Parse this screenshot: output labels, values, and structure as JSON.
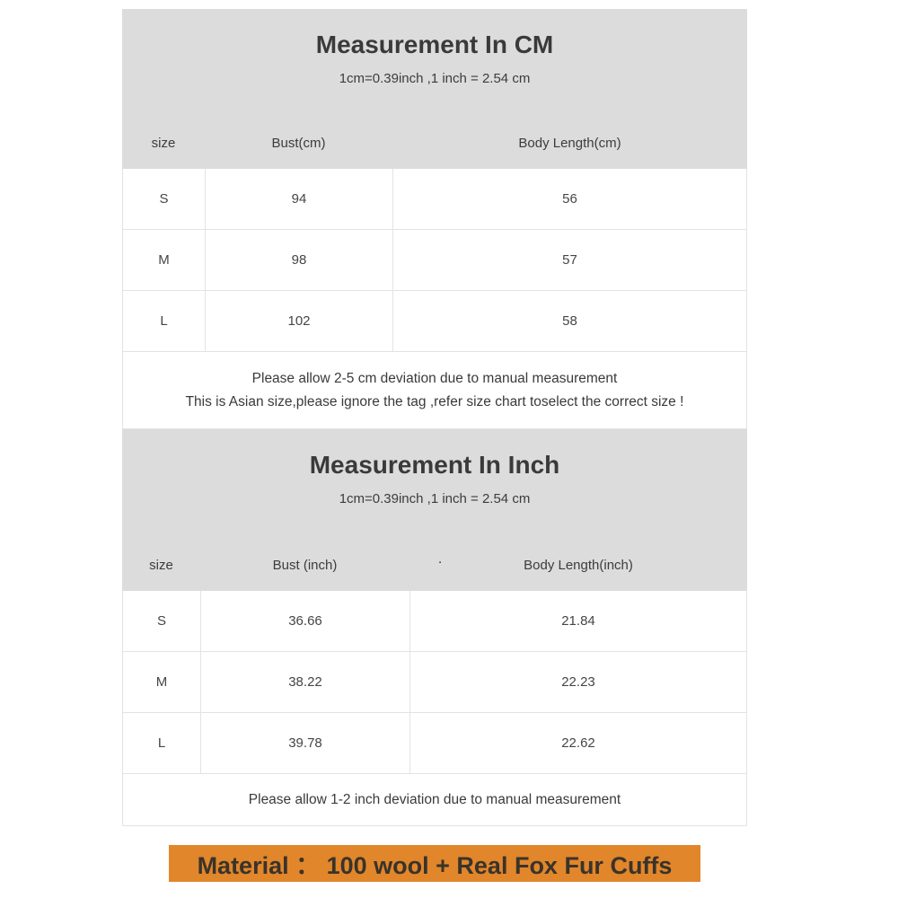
{
  "colors": {
    "page_bg": "#ffffff",
    "panel_bg": "#dcdcdc",
    "border": "#e3e3e3",
    "text": "#3e3e3e",
    "material_bg": "#e1862b",
    "material_text": "#3a332a"
  },
  "chart_data": [
    {
      "type": "table",
      "title": "Measurement In CM",
      "subtitle": "1cm=0.39inch ,1 inch = 2.54 cm",
      "columns": [
        "size",
        "Bust(cm)",
        "Body Length(cm)"
      ],
      "rows": [
        [
          "S",
          "94",
          "56"
        ],
        [
          "M",
          "98",
          "57"
        ],
        [
          "L",
          "102",
          "58"
        ]
      ],
      "notes": [
        "Please allow 2-5 cm deviation due to manual measurement",
        "This is Asian size,please ignore the tag ,refer size chart toselect the correct size !"
      ]
    },
    {
      "type": "table",
      "title": "Measurement In Inch",
      "subtitle": "1cm=0.39inch ,1 inch = 2.54 cm",
      "columns": [
        "size",
        "Bust (inch)",
        "Body Length(inch)"
      ],
      "stray_mark": ".",
      "rows": [
        [
          "S",
          "36.66",
          "21.84"
        ],
        [
          "M",
          "38.22",
          "22.23"
        ],
        [
          "L",
          "39.78",
          "22.62"
        ]
      ],
      "notes": [
        "Please allow 1-2 inch deviation due to manual measurement"
      ]
    }
  ],
  "material_bar": {
    "text": "Material ： 100 wool + Real Fox Fur Cuffs"
  }
}
